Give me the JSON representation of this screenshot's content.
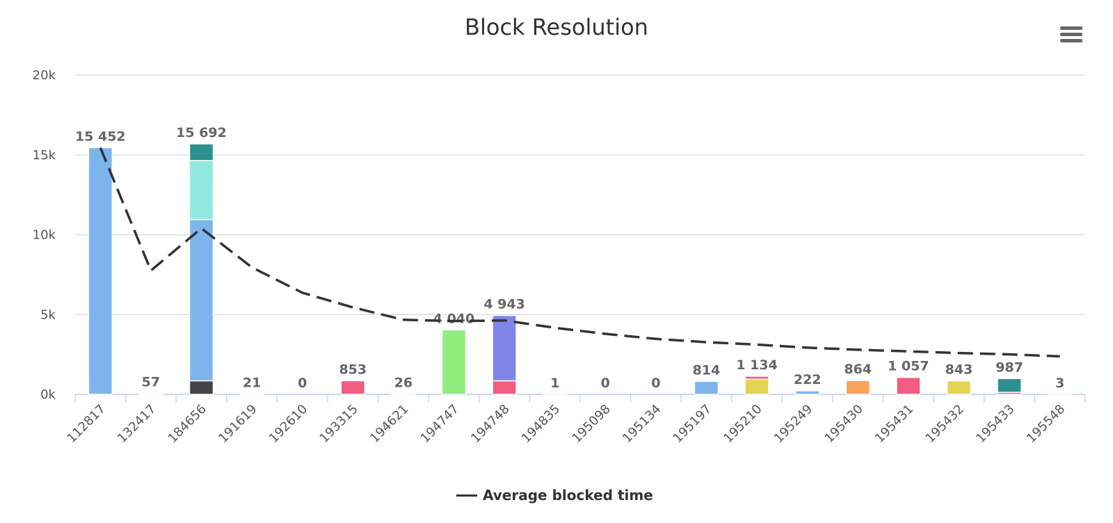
{
  "chart_data": {
    "type": "bar",
    "title": "Block Resolution",
    "stacked": true,
    "categories": [
      "112817",
      "132417",
      "184656",
      "191619",
      "192610",
      "193315",
      "194621",
      "194747",
      "194748",
      "194835",
      "195098",
      "195134",
      "195197",
      "195210",
      "195249",
      "195430",
      "195431",
      "195432",
      "195433",
      "195548"
    ],
    "totals": [
      15452,
      57,
      15692,
      21,
      0,
      853,
      26,
      4040,
      4943,
      1,
      0,
      0,
      814,
      1134,
      222,
      864,
      1057,
      843,
      987,
      3
    ],
    "total_labels": [
      "15 452",
      "57",
      "15 692",
      "21",
      "0",
      "853",
      "26",
      "4 040",
      "4 943",
      "1",
      "0",
      "0",
      "814",
      "1 134",
      "222",
      "864",
      "1 057",
      "843",
      "987",
      "3"
    ],
    "segments": [
      [
        {
          "value": 15452,
          "color": "#7cb5ec"
        }
      ],
      [
        {
          "value": 57,
          "color": "#7cb5ec"
        }
      ],
      [
        {
          "value": 850,
          "color": "#434348"
        },
        {
          "value": 10100,
          "color": "#7cb5ec"
        },
        {
          "value": 3700,
          "color": "#91e8e1"
        },
        {
          "value": 1042,
          "color": "#2b908f"
        }
      ],
      [
        {
          "value": 21,
          "color": "#7cb5ec"
        }
      ],
      [],
      [
        {
          "value": 853,
          "color": "#f15c80"
        }
      ],
      [
        {
          "value": 26,
          "color": "#7cb5ec"
        }
      ],
      [
        {
          "value": 4040,
          "color": "#90ed7d"
        }
      ],
      [
        {
          "value": 850,
          "color": "#f15c80"
        },
        {
          "value": 4093,
          "color": "#8085e9"
        }
      ],
      [
        {
          "value": 1,
          "color": "#7cb5ec"
        }
      ],
      [],
      [],
      [
        {
          "value": 814,
          "color": "#7cb5ec"
        }
      ],
      [
        {
          "value": 950,
          "color": "#e4d354"
        },
        {
          "value": 184,
          "color": "#f15c80"
        }
      ],
      [
        {
          "value": 222,
          "color": "#7cb5ec"
        }
      ],
      [
        {
          "value": 864,
          "color": "#f7a35c"
        }
      ],
      [
        {
          "value": 1057,
          "color": "#f15c80"
        }
      ],
      [
        {
          "value": 843,
          "color": "#e4d354"
        }
      ],
      [
        {
          "value": 130,
          "color": "#f15c80"
        },
        {
          "value": 857,
          "color": "#2b908f"
        }
      ],
      [
        {
          "value": 3,
          "color": "#7cb5ec"
        }
      ]
    ],
    "line_series": {
      "name": "Average blocked time",
      "color": "#333333",
      "dash": "dashed",
      "values": [
        15452,
        7755,
        10400,
        7955,
        6364,
        5445,
        4671,
        4592,
        4631,
        4168,
        3789,
        3473,
        3268,
        3116,
        2923,
        2794,
        2692,
        2589,
        2504,
        2379
      ]
    },
    "yaxis": {
      "ylim": [
        0,
        20000
      ],
      "ticks": [
        0,
        5000,
        10000,
        15000,
        20000
      ],
      "tick_labels": [
        "0k",
        "5k",
        "10k",
        "15k",
        "20k"
      ]
    },
    "grid": true,
    "legend_placement": "bottom-center"
  },
  "legend": {
    "label": "Average blocked time"
  },
  "menu": {
    "icon": "hamburger-menu-icon"
  }
}
